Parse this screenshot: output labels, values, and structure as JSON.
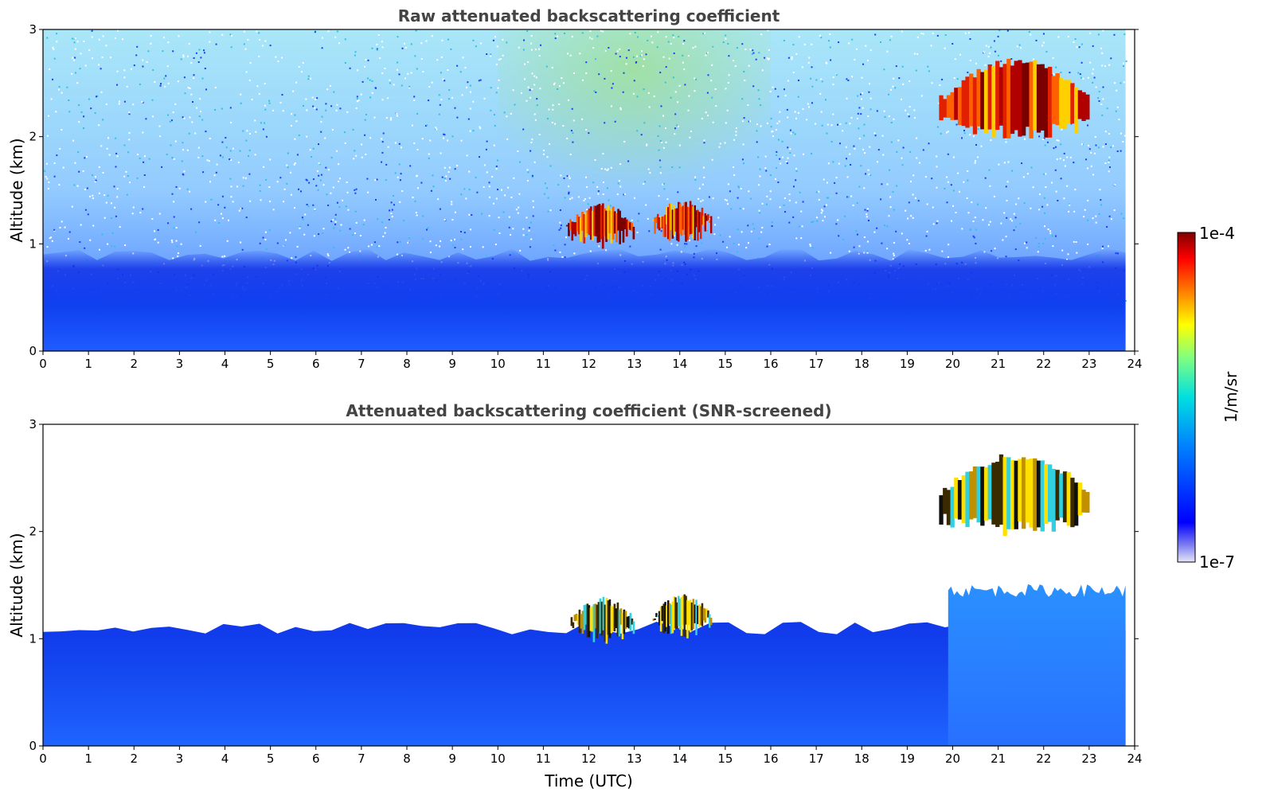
{
  "chart_data": [
    {
      "type": "heatmap",
      "title": "Raw attenuated backscattering coefficient",
      "xlabel": "",
      "ylabel": "Altitude (km)",
      "xlim": [
        0,
        24
      ],
      "ylim": [
        0,
        3
      ],
      "x_ticks": [
        "0",
        "1",
        "2",
        "3",
        "4",
        "5",
        "6",
        "7",
        "8",
        "9",
        "10",
        "11",
        "12",
        "13",
        "14",
        "15",
        "16",
        "17",
        "18",
        "19",
        "20",
        "21",
        "22",
        "23",
        "24"
      ],
      "y_ticks": [
        "0",
        "1",
        "2",
        "3"
      ],
      "data_end_time": 23.8,
      "features": [
        {
          "name": "boundary layer",
          "t_start": 0,
          "t_end": 23.8,
          "alt_top": 0.9,
          "level": "low"
        },
        {
          "name": "low cloud",
          "t_start": 11.5,
          "t_end": 13.0,
          "alt_bottom": 0.95,
          "alt_top": 1.35,
          "level": "high"
        },
        {
          "name": "low cloud",
          "t_start": 13.4,
          "t_end": 14.7,
          "alt_bottom": 1.0,
          "alt_top": 1.38,
          "level": "high"
        },
        {
          "name": "upper cloud",
          "t_start": 19.7,
          "t_end": 23.0,
          "alt_bottom": 1.95,
          "alt_top": 2.7,
          "level": "high"
        }
      ]
    },
    {
      "type": "heatmap",
      "title": "Attenuated backscattering coefficient (SNR-screened)",
      "xlabel": "Time (UTC)",
      "ylabel": "Altitude (km)",
      "xlim": [
        0,
        24
      ],
      "ylim": [
        0,
        3
      ],
      "x_ticks": [
        "0",
        "1",
        "2",
        "3",
        "4",
        "5",
        "6",
        "7",
        "8",
        "9",
        "10",
        "11",
        "12",
        "13",
        "14",
        "15",
        "16",
        "17",
        "18",
        "19",
        "20",
        "21",
        "22",
        "23",
        "24"
      ],
      "y_ticks": [
        "0",
        "1",
        "2",
        "3"
      ],
      "data_end_time": 23.8,
      "features": [
        {
          "name": "screened boundary layer",
          "t_start": 0,
          "t_end": 23.8,
          "alt_top": 1.1,
          "level": "low"
        },
        {
          "name": "elevated layer",
          "t_start": 19.9,
          "t_end": 23.8,
          "alt_top": 1.45,
          "level": "low"
        },
        {
          "name": "low cloud",
          "t_start": 11.6,
          "t_end": 13.0,
          "alt_bottom": 0.95,
          "alt_top": 1.35,
          "level": "high"
        },
        {
          "name": "low cloud",
          "t_start": 13.4,
          "t_end": 14.7,
          "alt_bottom": 1.0,
          "alt_top": 1.38,
          "level": "high"
        },
        {
          "name": "upper cloud",
          "t_start": 19.7,
          "t_end": 23.0,
          "alt_bottom": 1.95,
          "alt_top": 2.7,
          "level": "high"
        }
      ]
    }
  ],
  "colorbar": {
    "label": "1/m/sr",
    "max_label": "1e-4",
    "min_label": "1e-7",
    "scale": "log",
    "colormap": "jet",
    "colors": [
      "#e6e6fa",
      "#0000ff",
      "#0080ff",
      "#00e0e0",
      "#80ff80",
      "#ffff00",
      "#ff8000",
      "#ff0000",
      "#800000"
    ]
  }
}
